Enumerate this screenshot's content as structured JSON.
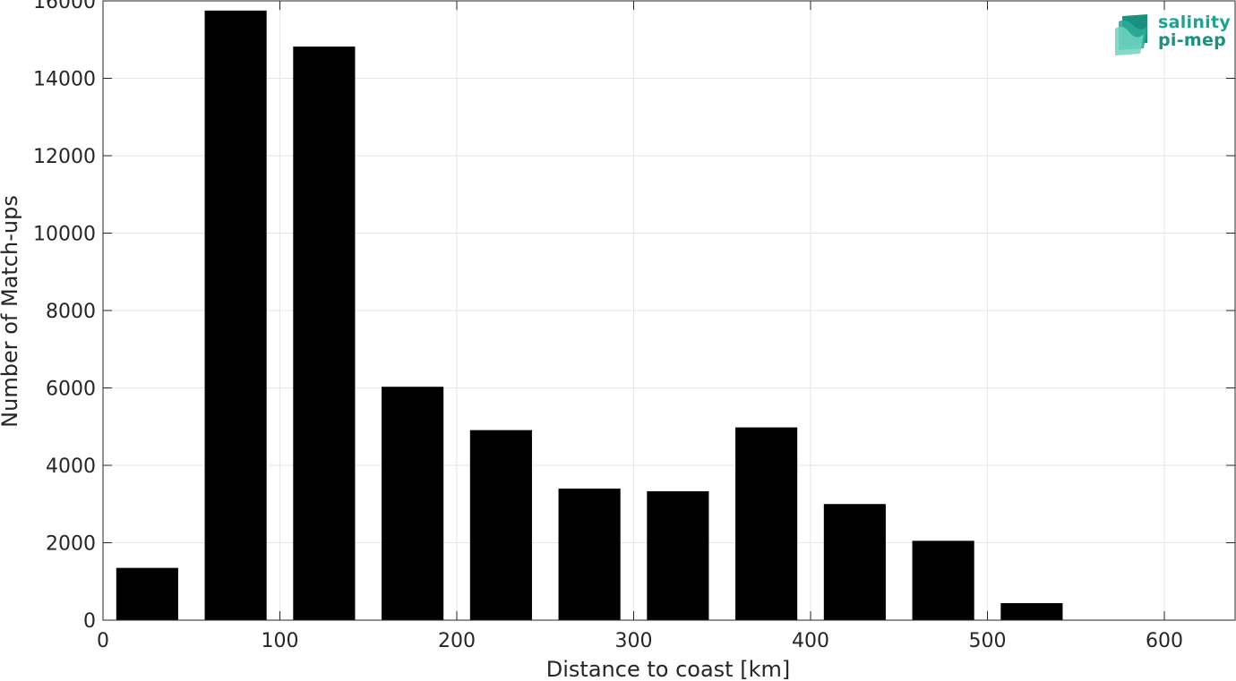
{
  "chart_data": {
    "type": "bar",
    "xlabel": "Distance to coast [km]",
    "ylabel": "Number of Match-ups",
    "xlim": [
      0,
      640
    ],
    "ylim": [
      0,
      16000
    ],
    "xticks": [
      0,
      100,
      200,
      300,
      400,
      500,
      600
    ],
    "yticks": [
      0,
      2000,
      4000,
      6000,
      8000,
      10000,
      12000,
      14000,
      16000
    ],
    "grid": true,
    "bar_width": 35,
    "bar_color": "#000000",
    "bars": [
      {
        "x": 25,
        "value": 1350
      },
      {
        "x": 75,
        "value": 15750
      },
      {
        "x": 125,
        "value": 14820
      },
      {
        "x": 175,
        "value": 6030
      },
      {
        "x": 225,
        "value": 4910
      },
      {
        "x": 275,
        "value": 3400
      },
      {
        "x": 325,
        "value": 3330
      },
      {
        "x": 375,
        "value": 4980
      },
      {
        "x": 425,
        "value": 3000
      },
      {
        "x": 475,
        "value": 2050
      },
      {
        "x": 525,
        "value": 440
      }
    ]
  },
  "logo": {
    "line1": "salinity",
    "line2": "pi-mep",
    "colors": [
      "#1fa391",
      "#1b8f80",
      "#5fc9b4"
    ]
  }
}
